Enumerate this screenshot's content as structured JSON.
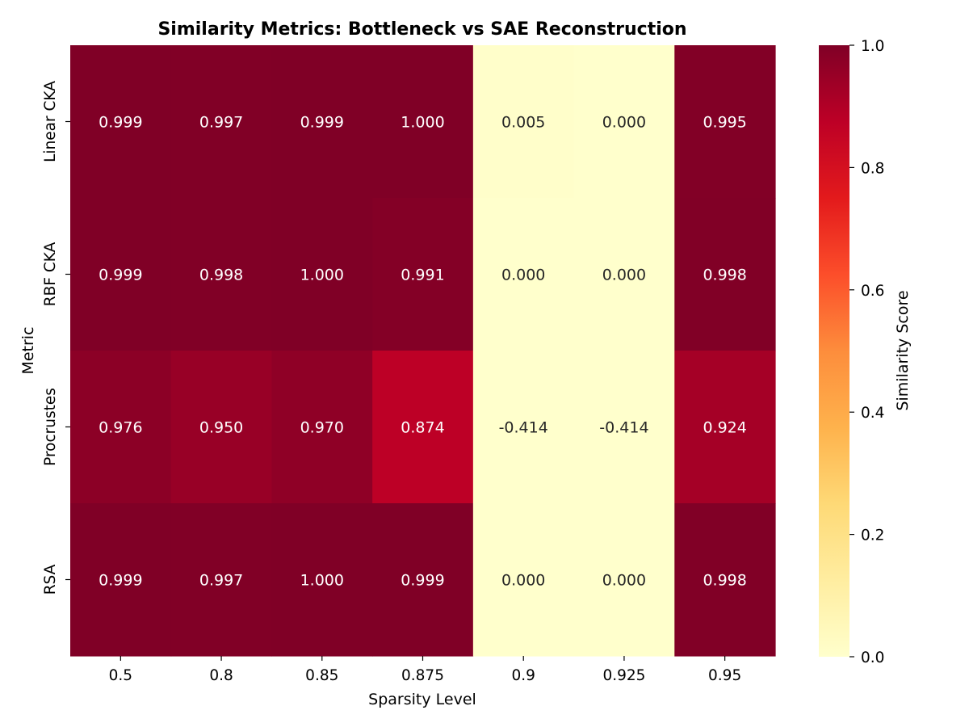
{
  "chart_data": {
    "type": "heatmap",
    "title": "Similarity Metrics: Bottleneck vs SAE Reconstruction",
    "xlabel": "Sparsity Level",
    "ylabel": "Metric",
    "x_categories": [
      "0.5",
      "0.8",
      "0.85",
      "0.875",
      "0.9",
      "0.925",
      "0.95"
    ],
    "y_categories": [
      "Linear CKA",
      "RBF CKA",
      "Procrustes",
      "RSA"
    ],
    "values": [
      [
        0.999,
        0.997,
        0.999,
        1.0,
        0.005,
        0.0,
        0.995
      ],
      [
        0.999,
        0.998,
        1.0,
        0.991,
        0.0,
        0.0,
        0.998
      ],
      [
        0.976,
        0.95,
        0.97,
        0.874,
        -0.414,
        -0.414,
        0.924
      ],
      [
        0.999,
        0.997,
        1.0,
        0.999,
        0.0,
        0.0,
        0.998
      ]
    ],
    "colorbar": {
      "label": "Similarity Score",
      "range": [
        0.0,
        1.0
      ],
      "ticks": [
        "0.0",
        "0.2",
        "0.4",
        "0.6",
        "0.8",
        "1.0"
      ],
      "colormap": "YlOrRd",
      "low_color": "#ffffcc",
      "high_color": "#800026"
    },
    "grid": false,
    "legend": "colorbar-right"
  }
}
